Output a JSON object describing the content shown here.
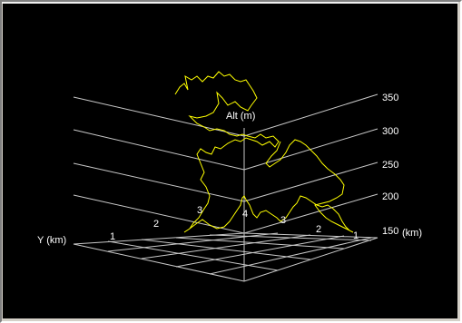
{
  "window": {
    "background": "#d4d0c8"
  },
  "plot": {
    "background": "#000000",
    "grid_color": "#c8c8c8",
    "track_color": "#ffff00",
    "labels": {
      "alt_axis": "Alt (m)",
      "y_axis": "Y (km)",
      "x_axis": "(km)",
      "alt_ticks": [
        "350",
        "300",
        "250",
        "200",
        "150"
      ],
      "y_ticks": [
        "1",
        "2",
        "3",
        "4"
      ],
      "x_ticks": [
        "1",
        "2",
        "3"
      ]
    }
  }
}
